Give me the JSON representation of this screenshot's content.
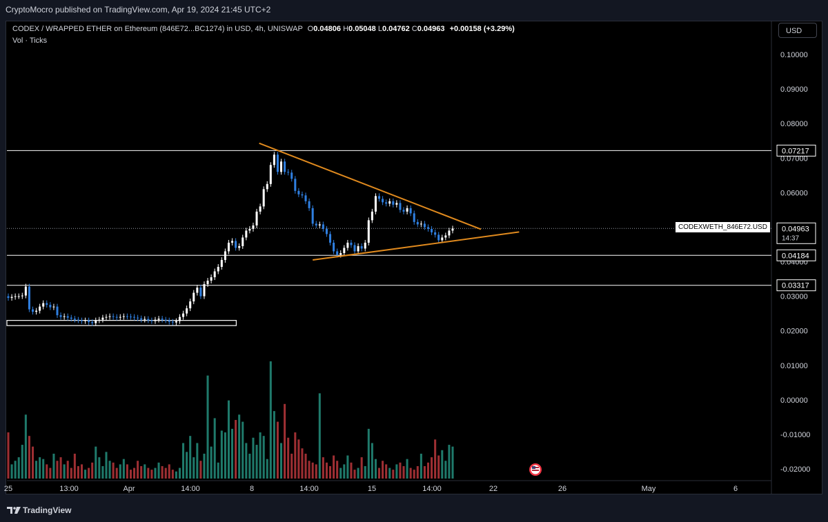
{
  "header": {
    "publisher_line": "CryptoMocro published on TradingView.com, Apr 19, 2024 21:45 UTC+2"
  },
  "legend": {
    "title": "CODEX / WRAPPED ETHER on Ethereum (846E72...BC1274) in USD, 4h, UNISWAP",
    "o_label": "O",
    "o": "0.04806",
    "h_label": "H",
    "h": "0.05048",
    "l_label": "L",
    "l": "0.04762",
    "c_label": "C",
    "c": "0.04963",
    "change": "+0.00158 (+3.29%)",
    "vol_line": "Vol · Ticks"
  },
  "currency_button": "USD",
  "symbol_label": "CODEXWETH_846E72.USD",
  "footer_brand": "TradingView",
  "colors": {
    "background": "#000000",
    "up_candle": "#ffffff",
    "down_candle": "#2f7fe0",
    "trendline": "#e08a1e",
    "level": "#ffffff",
    "vol_up": "#1f7a6b",
    "vol_down": "#9e2f33"
  },
  "chart_data": {
    "type": "candlestick",
    "yaxis": {
      "ticks": [
        "0.10000",
        "0.09000",
        "0.08000",
        "0.07000",
        "0.06000",
        "0.04000",
        "0.03000",
        "0.02000",
        "0.01000",
        "0.00000",
        "-0.01000",
        "-0.02000"
      ],
      "range": [
        -0.023,
        0.106
      ]
    },
    "xaxis": {
      "ticks": [
        "25",
        "13:00",
        "Apr",
        "14:00",
        "8",
        "14:00",
        "15",
        "14:00",
        "22",
        "26",
        "May",
        "6"
      ]
    },
    "price_labels": {
      "levels": [
        "0.07217",
        "0.04184",
        "0.03317"
      ],
      "last": "0.04963",
      "countdown": "14:37"
    },
    "horizontal_levels": [
      0.07217,
      0.04184,
      0.03317
    ],
    "last_price": 0.04963,
    "support_box": {
      "low": 0.0215,
      "high": 0.023,
      "x_start": 0,
      "x_end": 0.3
    },
    "trendlines": [
      {
        "name": "upper",
        "x": [
          0.33,
          0.62
        ],
        "y": [
          0.0743,
          0.0494
        ]
      },
      {
        "name": "lower",
        "x": [
          0.4,
          0.67
        ],
        "y": [
          0.0405,
          0.0486
        ]
      }
    ],
    "close": [
      0.0295,
      0.0298,
      0.03,
      0.03,
      0.0302,
      0.0328,
      0.0262,
      0.0255,
      0.0258,
      0.027,
      0.028,
      0.0275,
      0.0268,
      0.027,
      0.0245,
      0.024,
      0.0242,
      0.0238,
      0.0235,
      0.0232,
      0.023,
      0.0228,
      0.023,
      0.0225,
      0.0222,
      0.023,
      0.0232,
      0.0238,
      0.024,
      0.0242,
      0.024,
      0.0238,
      0.024,
      0.0242,
      0.0241,
      0.024,
      0.0238,
      0.0236,
      0.0232,
      0.0234,
      0.023,
      0.0228,
      0.0232,
      0.0235,
      0.0232,
      0.023,
      0.0226,
      0.0224,
      0.0228,
      0.024,
      0.025,
      0.0265,
      0.0285,
      0.031,
      0.0325,
      0.03,
      0.0335,
      0.0345,
      0.0355,
      0.0372,
      0.0385,
      0.0405,
      0.043,
      0.0455,
      0.046,
      0.044,
      0.0445,
      0.047,
      0.049,
      0.0495,
      0.0505,
      0.0545,
      0.056,
      0.061,
      0.0625,
      0.068,
      0.071,
      0.066,
      0.069,
      0.066,
      0.0658,
      0.064,
      0.0605,
      0.0595,
      0.0592,
      0.0575,
      0.0555,
      0.051,
      0.0505,
      0.0508,
      0.0495,
      0.048,
      0.0455,
      0.043,
      0.042,
      0.0425,
      0.044,
      0.0455,
      0.0448,
      0.043,
      0.0445,
      0.0438,
      0.0455,
      0.052,
      0.0545,
      0.059,
      0.0582,
      0.0572,
      0.0568,
      0.0575,
      0.0565,
      0.057,
      0.055,
      0.0545,
      0.0555,
      0.054,
      0.0515,
      0.0508,
      0.051,
      0.05,
      0.0495,
      0.0485,
      0.0478,
      0.0462,
      0.047,
      0.0476,
      0.049,
      0.0496
    ],
    "open": [
      0.03,
      0.0295,
      0.0298,
      0.03,
      0.03,
      0.0302,
      0.0328,
      0.0262,
      0.0255,
      0.0258,
      0.027,
      0.028,
      0.0275,
      0.0268,
      0.027,
      0.0245,
      0.024,
      0.0242,
      0.0238,
      0.0235,
      0.0232,
      0.023,
      0.0228,
      0.023,
      0.0225,
      0.0222,
      0.023,
      0.0232,
      0.0238,
      0.024,
      0.0242,
      0.024,
      0.0238,
      0.024,
      0.0242,
      0.0241,
      0.024,
      0.0238,
      0.0236,
      0.0232,
      0.0234,
      0.023,
      0.0228,
      0.0232,
      0.0235,
      0.0232,
      0.023,
      0.0226,
      0.0224,
      0.0228,
      0.024,
      0.025,
      0.0265,
      0.0285,
      0.031,
      0.0325,
      0.03,
      0.0335,
      0.0345,
      0.0355,
      0.0372,
      0.0385,
      0.0405,
      0.043,
      0.0455,
      0.046,
      0.044,
      0.0445,
      0.047,
      0.049,
      0.0495,
      0.0505,
      0.0545,
      0.056,
      0.061,
      0.0625,
      0.068,
      0.071,
      0.066,
      0.069,
      0.066,
      0.0658,
      0.064,
      0.0605,
      0.0595,
      0.0592,
      0.0575,
      0.0555,
      0.051,
      0.0505,
      0.0508,
      0.0495,
      0.048,
      0.0455,
      0.043,
      0.042,
      0.0425,
      0.044,
      0.0455,
      0.0448,
      0.043,
      0.0445,
      0.0438,
      0.0455,
      0.052,
      0.0545,
      0.059,
      0.0582,
      0.0572,
      0.0568,
      0.0575,
      0.0565,
      0.057,
      0.055,
      0.0545,
      0.0555,
      0.054,
      0.0515,
      0.0508,
      0.051,
      0.05,
      0.0495,
      0.0485,
      0.0478,
      0.0462,
      0.047,
      0.0476,
      0.049
    ],
    "volume": [
      0.013,
      0.004,
      0.005,
      0.006,
      0.0095,
      0.018,
      0.012,
      0.009,
      0.005,
      0.006,
      0.0055,
      0.004,
      0.003,
      0.007,
      0.005,
      0.006,
      0.004,
      0.005,
      0.003,
      0.007,
      0.0035,
      0.004,
      0.0025,
      0.003,
      0.0045,
      0.009,
      0.006,
      0.0035,
      0.0075,
      0.005,
      0.0045,
      0.003,
      0.004,
      0.0055,
      0.004,
      0.0025,
      0.003,
      0.005,
      0.0035,
      0.004,
      0.003,
      0.0025,
      0.003,
      0.0045,
      0.0035,
      0.003,
      0.004,
      0.0025,
      0.002,
      0.003,
      0.01,
      0.0075,
      0.012,
      0.006,
      0.01,
      0.005,
      0.007,
      0.029,
      0.009,
      0.017,
      0.0045,
      0.0135,
      0.013,
      0.022,
      0.014,
      0.0165,
      0.018,
      0.016,
      0.01,
      0.007,
      0.0115,
      0.0095,
      0.013,
      0.012,
      0.0055,
      0.033,
      0.019,
      0.016,
      0.01,
      0.021,
      0.0115,
      0.007,
      0.013,
      0.011,
      0.0085,
      0.007,
      0.005,
      0.0045,
      0.004,
      0.024,
      0.006,
      0.0045,
      0.0035,
      0.0065,
      0.005,
      0.003,
      0.004,
      0.0065,
      0.0045,
      0.0025,
      0.003,
      0.006,
      0.0035,
      0.014,
      0.01,
      0.0055,
      0.003,
      0.005,
      0.004,
      0.003,
      0.0025,
      0.004,
      0.0045,
      0.0035,
      0.0055,
      0.003,
      0.0025,
      0.0035,
      0.007,
      0.0035,
      0.0045,
      0.006,
      0.011,
      0.0065,
      0.008,
      0.005,
      0.0095,
      0.009
    ]
  }
}
